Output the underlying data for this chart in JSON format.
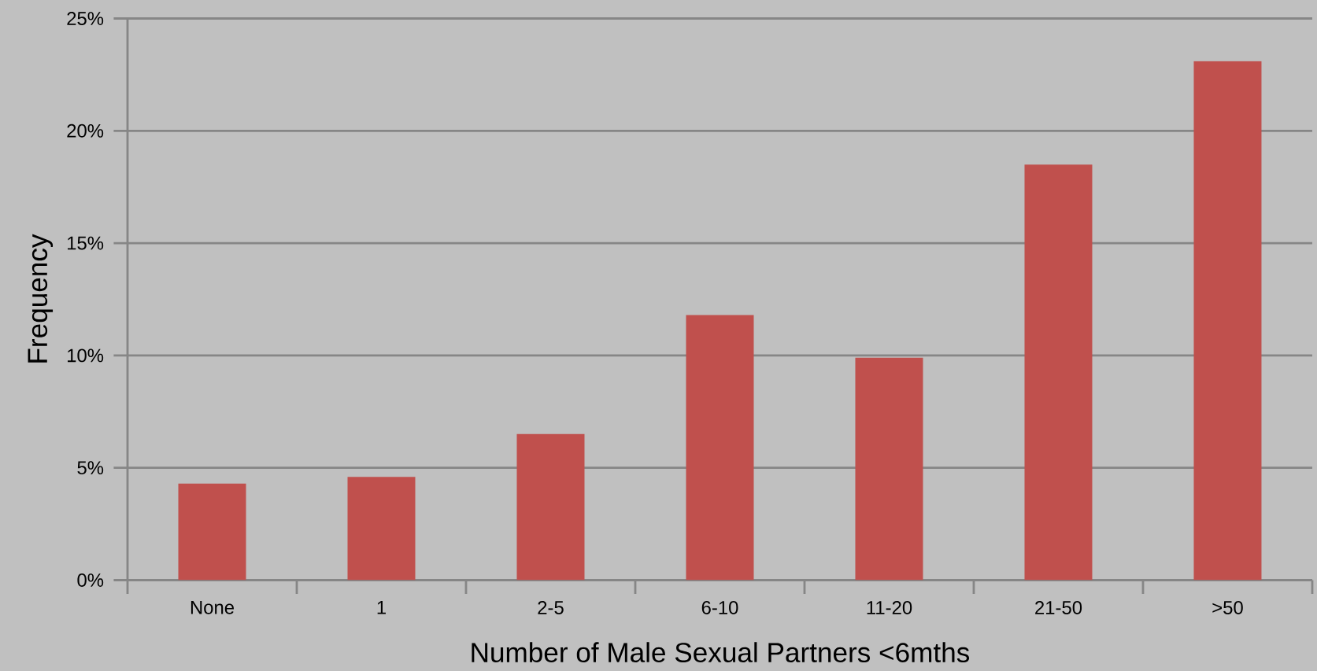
{
  "chart_data": {
    "type": "bar",
    "xlabel": "Number of Male Sexual Partners <6mths",
    "ylabel": "Frequency",
    "categories": [
      "None",
      "1",
      "2-5",
      "6-10",
      "11-20",
      "21-50",
      ">50"
    ],
    "values": [
      4.3,
      4.6,
      6.5,
      11.8,
      9.9,
      18.5,
      23.1
    ],
    "color": "#c0504d",
    "ylim": [
      0,
      25
    ],
    "yticks": [
      {
        "value": 0,
        "label": "0%"
      },
      {
        "value": 5,
        "label": "5%"
      },
      {
        "value": 10,
        "label": "10%"
      },
      {
        "value": 15,
        "label": "15%"
      },
      {
        "value": 20,
        "label": "20%"
      },
      {
        "value": 25,
        "label": "25%"
      }
    ],
    "grid": "y"
  }
}
